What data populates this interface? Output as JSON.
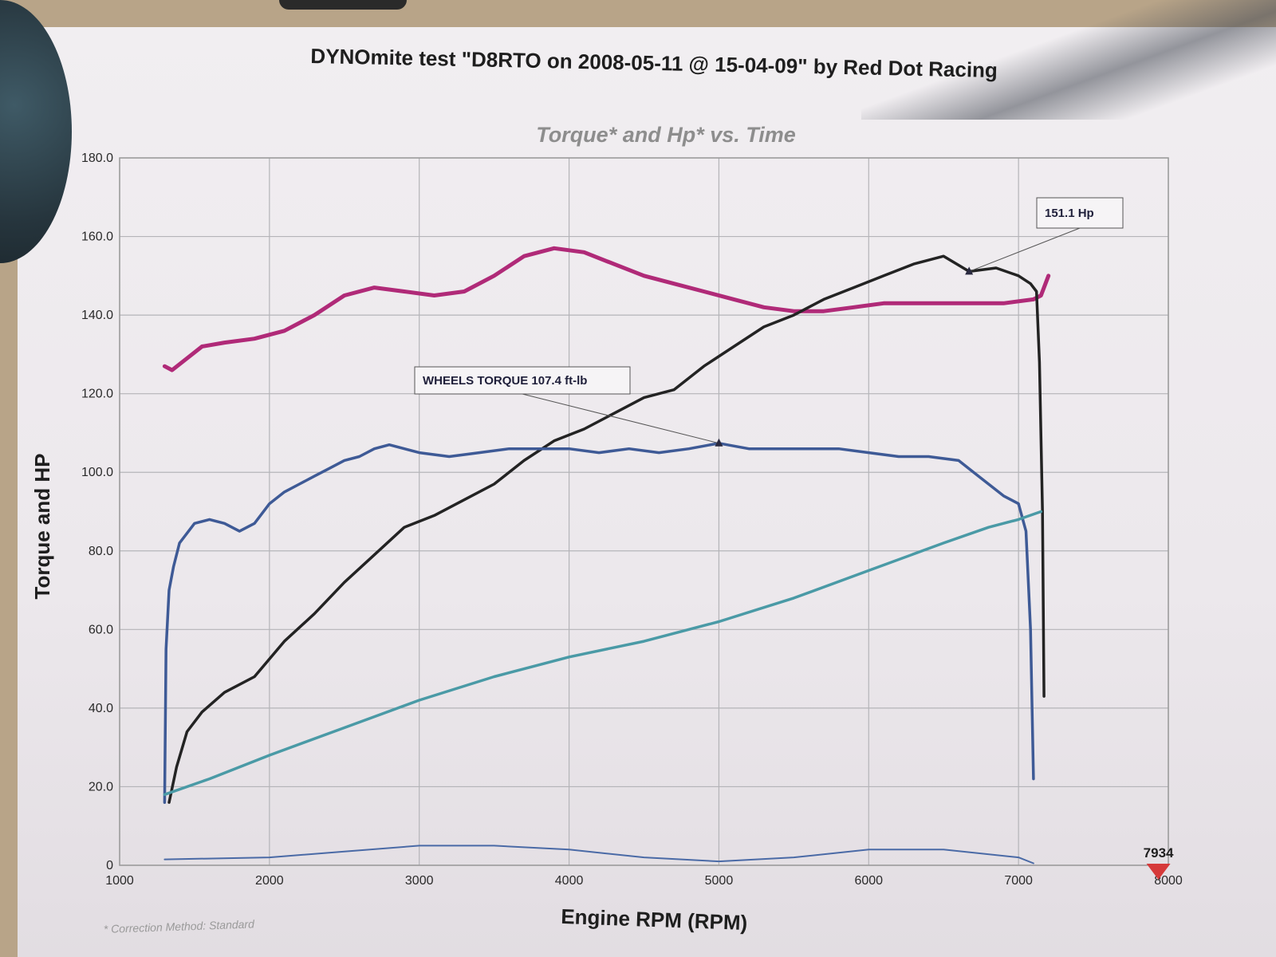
{
  "chart_data": {
    "type": "line",
    "title": "DYNOmite test \"D8RTO on 2008-05-11 @ 15-04-09\" by Red Dot Racing",
    "subtitle": "Torque* and Hp* vs. Time",
    "xlabel": "Engine RPM (RPM)",
    "ylabel": "Torque and HP",
    "xlim": [
      1000,
      8000
    ],
    "ylim": [
      0,
      180
    ],
    "x_ticks": [
      "1000",
      "2000",
      "3000",
      "4000",
      "5000",
      "6000",
      "7000",
      "8000"
    ],
    "y_ticks": [
      "0",
      "20.0",
      "40.0",
      "60.0",
      "80.0",
      "100.0",
      "120.0",
      "140.0",
      "160.0",
      "180.0"
    ],
    "grid": true,
    "footnote": "* Correction Method: Standard",
    "annotations": [
      {
        "text": "151.1 Hp",
        "x": 6670,
        "y": 151.1
      },
      {
        "text": "WHEELS TORQUE 107.4 ft-lb",
        "x": 5000,
        "y": 107.4
      }
    ],
    "marker": {
      "text": "7934",
      "x": 7934,
      "y": 0
    },
    "series": [
      {
        "color": "#b02a78",
        "x": [
          1300,
          1350,
          1450,
          1550,
          1700,
          1900,
          2100,
          2300,
          2500,
          2700,
          2900,
          3100,
          3300,
          3500,
          3700,
          3900,
          4100,
          4300,
          4500,
          4700,
          4900,
          5100,
          5300,
          5500,
          5700,
          5900,
          6100,
          6300,
          6500,
          6700,
          6900,
          7100,
          7150,
          7200
        ],
        "values": [
          127,
          126,
          129,
          132,
          133,
          134,
          136,
          140,
          145,
          147,
          146,
          145,
          146,
          150,
          155,
          157,
          156,
          153,
          150,
          148,
          146,
          144,
          142,
          141,
          141,
          142,
          143,
          143,
          143,
          143,
          143,
          144,
          145,
          150
        ]
      },
      {
        "color": "#232323",
        "x": [
          1330,
          1380,
          1450,
          1550,
          1700,
          1900,
          2100,
          2300,
          2500,
          2700,
          2900,
          3100,
          3300,
          3500,
          3700,
          3900,
          4100,
          4300,
          4500,
          4700,
          4900,
          5100,
          5300,
          5500,
          5700,
          5900,
          6100,
          6300,
          6500,
          6670,
          6850,
          7000,
          7080,
          7120,
          7140,
          7160,
          7170
        ],
        "values": [
          16,
          25,
          34,
          39,
          44,
          48,
          57,
          64,
          72,
          79,
          86,
          89,
          93,
          97,
          103,
          108,
          111,
          115,
          119,
          121,
          127,
          132,
          137,
          140,
          144,
          147,
          150,
          153,
          155,
          151.1,
          152,
          150,
          148,
          146,
          128,
          90,
          43
        ]
      },
      {
        "color": "#3e5a96",
        "x": [
          1300,
          1310,
          1330,
          1360,
          1400,
          1500,
          1600,
          1700,
          1800,
          1900,
          2000,
          2100,
          2200,
          2300,
          2400,
          2500,
          2600,
          2700,
          2800,
          3000,
          3200,
          3400,
          3600,
          3800,
          4000,
          4200,
          4400,
          4600,
          4800,
          5000,
          5200,
          5400,
          5600,
          5800,
          6000,
          6200,
          6400,
          6600,
          6700,
          6800,
          6900,
          7000,
          7050,
          7080,
          7100
        ],
        "values": [
          16,
          55,
          70,
          76,
          82,
          87,
          88,
          87,
          85,
          87,
          92,
          95,
          97,
          99,
          101,
          103,
          104,
          106,
          107,
          105,
          104,
          105,
          106,
          106,
          106,
          105,
          106,
          105,
          106,
          107.4,
          106,
          106,
          106,
          106,
          105,
          104,
          104,
          103,
          100,
          97,
          94,
          92,
          85,
          60,
          22
        ]
      },
      {
        "color": "#4a9aa6",
        "x": [
          1300,
          1600,
          2000,
          2500,
          3000,
          3500,
          4000,
          4500,
          5000,
          5500,
          6000,
          6500,
          6800,
          7000,
          7150
        ],
        "values": [
          18,
          22,
          28,
          35,
          42,
          48,
          53,
          57,
          62,
          68,
          75,
          82,
          86,
          88,
          90
        ]
      },
      {
        "color": "#4a6aa6",
        "x": [
          1300,
          2000,
          2500,
          3000,
          3500,
          4000,
          4500,
          5000,
          5500,
          6000,
          6500,
          7000,
          7100
        ],
        "values": [
          1.5,
          2,
          3.5,
          5,
          5,
          4,
          2,
          1,
          2,
          4,
          4,
          2,
          0.5
        ]
      }
    ]
  }
}
